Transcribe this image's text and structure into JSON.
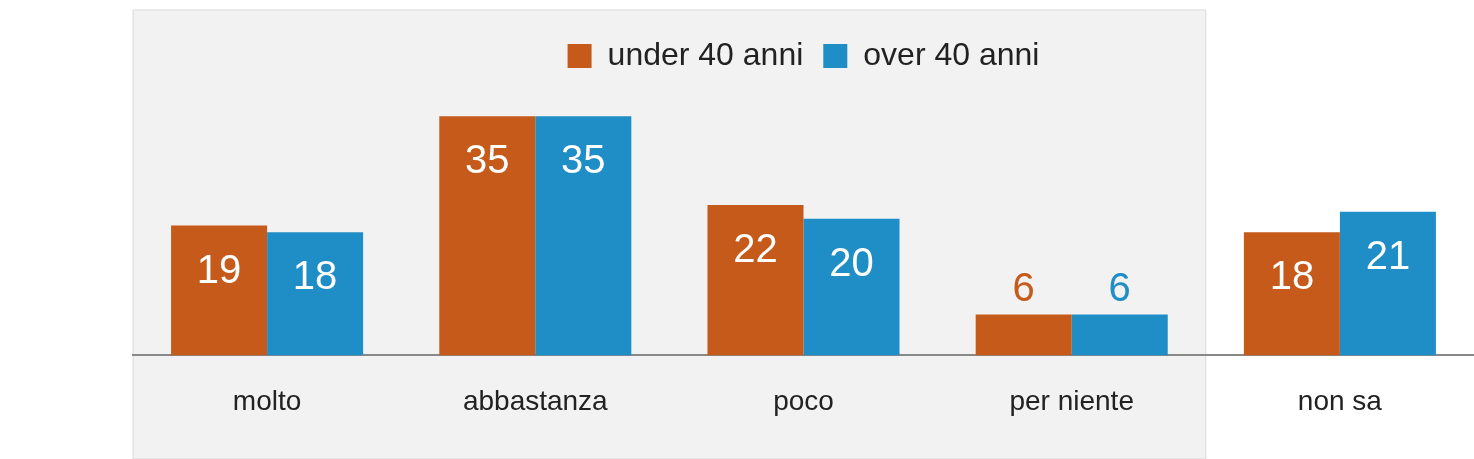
{
  "chart_data": {
    "type": "bar",
    "categories": [
      "molto",
      "abbastanza",
      "poco",
      "per niente",
      "non sa"
    ],
    "series": [
      {
        "name": "under 40 anni",
        "color": "#c55a1a",
        "values": [
          19,
          35,
          22,
          6,
          18
        ]
      },
      {
        "name": "over 40 anni",
        "color": "#1f8dc6",
        "values": [
          18,
          35,
          20,
          6,
          21
        ]
      }
    ],
    "data_labels": true,
    "legend": "top",
    "grid": false,
    "bands": [
      {
        "axis": "x",
        "from": "molto",
        "to": "per niente",
        "color": "#f2f2f2"
      }
    ]
  }
}
